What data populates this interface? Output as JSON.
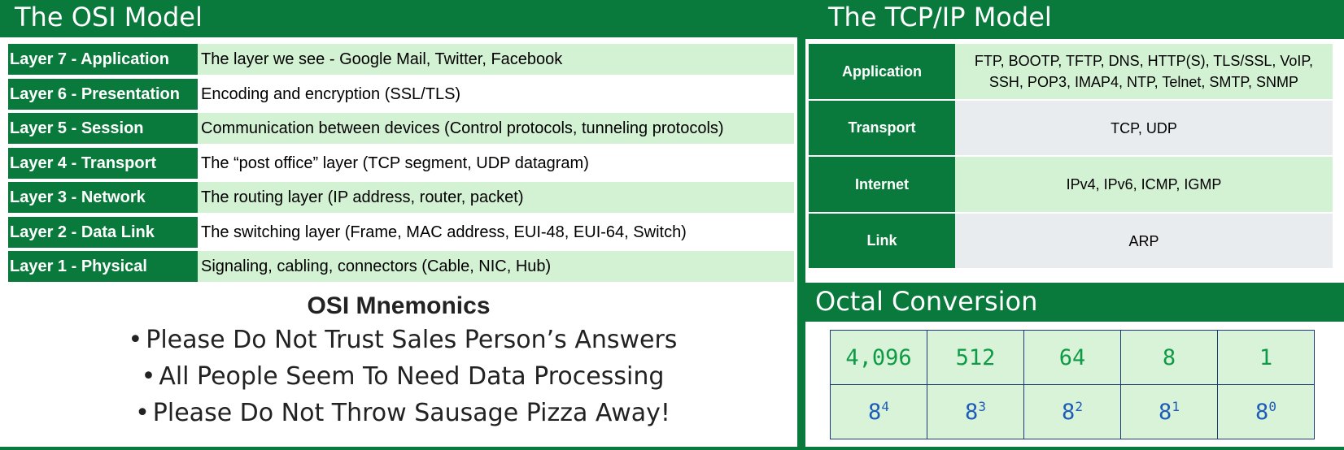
{
  "osi": {
    "title": "The OSI Model",
    "layers": [
      {
        "label": "Layer 7 - Application",
        "desc": "The layer we see - Google Mail, Twitter, Facebook"
      },
      {
        "label": "Layer 6 - Presentation",
        "desc": "Encoding and encryption (SSL/TLS)"
      },
      {
        "label": "Layer 5 - Session",
        "desc": "Communication between devices (Control protocols, tunneling protocols)"
      },
      {
        "label": "Layer 4 - Transport",
        "desc": "The “post office” layer (TCP segment, UDP datagram)"
      },
      {
        "label": "Layer 3 - Network",
        "desc": "The routing layer (IP address, router, packet)"
      },
      {
        "label": "Layer 2 - Data Link",
        "desc": "The switching layer (Frame, MAC address, EUI-48, EUI-64, Switch)"
      },
      {
        "label": "Layer 1 - Physical",
        "desc": "Signaling, cabling, connectors (Cable, NIC, Hub)"
      }
    ]
  },
  "mnemonics": {
    "title": "OSI Mnemonics",
    "items": [
      "Please Do Not Trust Sales Person’s Answers",
      "All People Seem To Need Data Processing",
      "Please Do Not Throw Sausage Pizza Away!"
    ]
  },
  "tcpip": {
    "title": "The TCP/IP Model",
    "layers": [
      {
        "label": "Application",
        "value_line1": "FTP, BOOTP, TFTP, DNS, HTTP(S), TLS/SSL, VoIP,",
        "value_line2": "SSH, POP3, IMAP4, NTP, Telnet, SMTP, SNMP"
      },
      {
        "label": "Transport",
        "value_line1": "TCP, UDP",
        "value_line2": ""
      },
      {
        "label": "Internet",
        "value_line1": "IPv4, IPv6, ICMP, IGMP",
        "value_line2": ""
      },
      {
        "label": "Link",
        "value_line1": "ARP",
        "value_line2": ""
      }
    ]
  },
  "octal": {
    "title": "Octal Conversion",
    "values": [
      "4,096",
      "512",
      "64",
      "8",
      "1"
    ],
    "base": "8",
    "exponents": [
      "4",
      "3",
      "2",
      "1",
      "0"
    ]
  },
  "colors": {
    "brand_green": "#0a7a3c",
    "row_shade": "#d3f1d3",
    "octal_value": "#0e9a46",
    "octal_power": "#1e5bb8"
  }
}
